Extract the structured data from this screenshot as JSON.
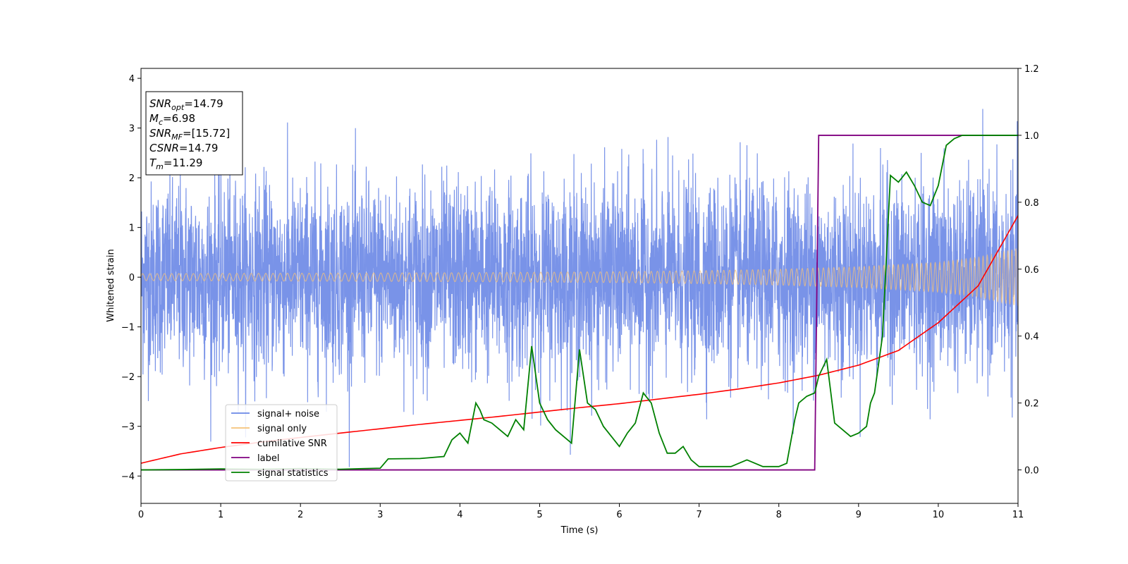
{
  "chart_data": {
    "type": "line",
    "xlabel": "Time (s)",
    "ylabel": "Whitened strain",
    "xlim": [
      0,
      11
    ],
    "ylim_left": [
      -4.55,
      4.2
    ],
    "ylim_right": [
      -0.1,
      1.2
    ],
    "x_ticks": [
      0,
      1,
      2,
      3,
      4,
      5,
      6,
      7,
      8,
      9,
      10,
      11
    ],
    "x_tick_labels": [
      "0",
      "1",
      "2",
      "3",
      "4",
      "5",
      "6",
      "7",
      "8",
      "9",
      "10",
      "11"
    ],
    "y_left_ticks": [
      4,
      3,
      2,
      1,
      0,
      -1,
      -2,
      -3,
      -4
    ],
    "y_left_tick_labels": [
      "4",
      "3",
      "2",
      "1",
      "0",
      "−1",
      "−2",
      "−3",
      "−4"
    ],
    "y_right_ticks": [
      1.2,
      1.0,
      0.8,
      0.6,
      0.4,
      0.2,
      0.0
    ],
    "y_right_tick_labels": [
      "1.2",
      "1.0",
      "0.8",
      "0.6",
      "0.4",
      "0.2",
      "0.0"
    ],
    "legend_position": "lower-left",
    "grid": false,
    "series": [
      {
        "name": "signal+ noise",
        "axis": "left",
        "color": "#6a87e6",
        "description_values": {
          "amplitude_range": [
            -4.2,
            3.85
          ]
        }
      },
      {
        "name": "signal only",
        "axis": "left",
        "color": "#f5c27a",
        "envelope_x": [
          0,
          1,
          2,
          3,
          4,
          5,
          6,
          7,
          8,
          9,
          10,
          10.5,
          11
        ],
        "envelope_amp": [
          0.07,
          0.075,
          0.08,
          0.085,
          0.09,
          0.1,
          0.11,
          0.13,
          0.16,
          0.21,
          0.3,
          0.4,
          0.58
        ]
      },
      {
        "name": "cumilative SNR",
        "axis": "right",
        "color": "#ff0000",
        "x": [
          0,
          0.5,
          1,
          1.5,
          2,
          2.5,
          3,
          3.5,
          4,
          4.5,
          5,
          5.5,
          6,
          6.5,
          7,
          7.5,
          8,
          8.5,
          9,
          9.5,
          10,
          10.5,
          11
        ],
        "values": [
          0.02,
          0.048,
          0.067,
          0.083,
          0.097,
          0.11,
          0.123,
          0.136,
          0.148,
          0.16,
          0.173,
          0.186,
          0.198,
          0.212,
          0.226,
          0.242,
          0.26,
          0.283,
          0.313,
          0.357,
          0.44,
          0.55,
          0.76
        ]
      },
      {
        "name": "label",
        "axis": "right",
        "color": "#800080",
        "x": [
          0,
          8.45,
          8.5,
          11
        ],
        "values": [
          0,
          0,
          1,
          1
        ]
      },
      {
        "name": "signal statistics",
        "axis": "right",
        "color": "#008000",
        "x": [
          0,
          0.5,
          1,
          1.5,
          2,
          2.5,
          3,
          3.1,
          3.5,
          3.8,
          3.9,
          4.0,
          4.1,
          4.2,
          4.25,
          4.3,
          4.4,
          4.5,
          4.6,
          4.7,
          4.8,
          4.9,
          5.0,
          5.1,
          5.2,
          5.3,
          5.4,
          5.5,
          5.55,
          5.6,
          5.7,
          5.8,
          5.9,
          6.0,
          6.1,
          6.2,
          6.3,
          6.4,
          6.5,
          6.6,
          6.7,
          6.8,
          6.9,
          7.0,
          7.1,
          7.2,
          7.4,
          7.6,
          7.8,
          8.0,
          8.1,
          8.2,
          8.25,
          8.35,
          8.45,
          8.5,
          8.6,
          8.7,
          8.8,
          8.9,
          9.0,
          9.1,
          9.15,
          9.2,
          9.3,
          9.4,
          9.5,
          9.6,
          9.7,
          9.8,
          9.9,
          10.0,
          10.1,
          10.2,
          10.3,
          10.5,
          11.0
        ],
        "values": [
          0.0,
          0.001,
          0.003,
          0.002,
          0.004,
          0.002,
          0.005,
          0.033,
          0.034,
          0.04,
          0.09,
          0.11,
          0.08,
          0.2,
          0.18,
          0.15,
          0.14,
          0.12,
          0.1,
          0.15,
          0.12,
          0.37,
          0.2,
          0.15,
          0.12,
          0.1,
          0.08,
          0.36,
          0.28,
          0.2,
          0.18,
          0.13,
          0.1,
          0.07,
          0.11,
          0.14,
          0.23,
          0.2,
          0.11,
          0.05,
          0.05,
          0.07,
          0.03,
          0.01,
          0.01,
          0.01,
          0.01,
          0.03,
          0.01,
          0.01,
          0.02,
          0.15,
          0.2,
          0.22,
          0.23,
          0.28,
          0.33,
          0.14,
          0.12,
          0.1,
          0.11,
          0.13,
          0.2,
          0.23,
          0.4,
          0.88,
          0.86,
          0.89,
          0.85,
          0.8,
          0.79,
          0.85,
          0.97,
          0.99,
          1.0,
          1.0,
          1.0
        ]
      }
    ],
    "annotation_lines": [
      {
        "sym": "SNR",
        "sub": "opt",
        "val": "=14.79"
      },
      {
        "sym": "M",
        "sub": "c",
        "val": "=6.98"
      },
      {
        "sym": "SNR",
        "sub": "MF",
        "val": "=[15.72]"
      },
      {
        "sym": "CSNR",
        "sub": "",
        "val": "=14.79"
      },
      {
        "sym": "T",
        "sub": "m",
        "val": "=11.29"
      }
    ]
  }
}
